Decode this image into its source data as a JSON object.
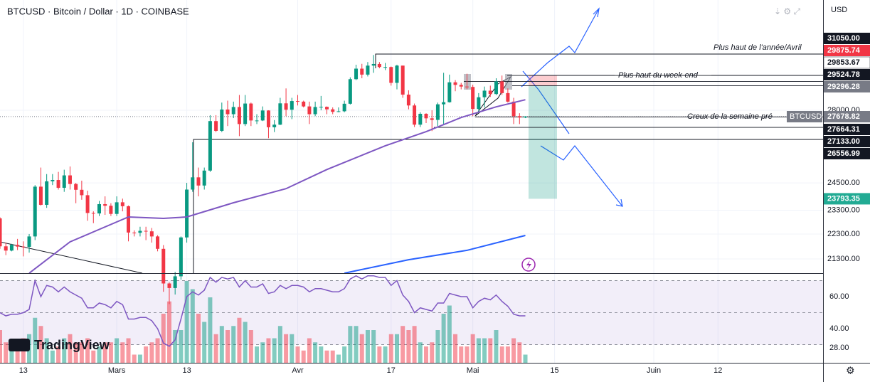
{
  "header": "BTCUSD · Bitcoin / Dollar · 1D · COINBASE",
  "currency": "USD",
  "logo": "TradingView",
  "chart_data": {
    "type": "candlestick",
    "log_scale": true,
    "grid": true,
    "up_color": "#089981",
    "down_color": "#f23645",
    "xlim": [
      0,
      141
    ],
    "xticks": [
      {
        "value": 4,
        "label": "13"
      },
      {
        "value": 20,
        "label": "Mars"
      },
      {
        "value": 32,
        "label": "13"
      },
      {
        "value": 51,
        "label": "Avr"
      },
      {
        "value": 67,
        "label": "17"
      },
      {
        "value": 81,
        "label": "Mai"
      },
      {
        "value": 95,
        "label": "15"
      },
      {
        "value": 112,
        "label": "Juin"
      },
      {
        "value": 123,
        "label": "12"
      }
    ],
    "ylim": [
      20750,
      34300
    ],
    "yticks": [
      {
        "value": 28000,
        "label": "28000.00"
      },
      {
        "value": 24500,
        "label": "24500.00"
      },
      {
        "value": 23300,
        "label": "23300.00"
      },
      {
        "value": 22300,
        "label": "22300.00"
      },
      {
        "value": 21300,
        "label": "21300.00"
      }
    ],
    "candles": [
      [
        22950,
        23000,
        21700,
        21800
      ],
      [
        21800,
        21950,
        21450,
        21630
      ],
      [
        21630,
        21900,
        21600,
        21860
      ],
      [
        21860,
        22100,
        21650,
        21790
      ],
      [
        21790,
        22000,
        21400,
        21780
      ],
      [
        21780,
        22300,
        21550,
        22200
      ],
      [
        22200,
        24400,
        22050,
        24330
      ],
      [
        24330,
        25200,
        23500,
        23530
      ],
      [
        23530,
        24900,
        23400,
        24570
      ],
      [
        24570,
        24900,
        24400,
        24630
      ],
      [
        24630,
        25000,
        24200,
        24280
      ],
      [
        24280,
        25100,
        24100,
        24840
      ],
      [
        24840,
        25250,
        24200,
        24450
      ],
      [
        24450,
        24500,
        23600,
        24190
      ],
      [
        24190,
        24600,
        23750,
        23950
      ],
      [
        23950,
        24150,
        22850,
        23180
      ],
      [
        23180,
        23250,
        22750,
        23160
      ],
      [
        23160,
        23700,
        23050,
        23560
      ],
      [
        23560,
        23900,
        23100,
        23490
      ],
      [
        23490,
        23600,
        23050,
        23140
      ],
      [
        23140,
        23900,
        23050,
        23640
      ],
      [
        23640,
        23800,
        23250,
        23470
      ],
      [
        23470,
        23500,
        22000,
        22360
      ],
      [
        22360,
        22450,
        22200,
        22350
      ],
      [
        22350,
        22600,
        22200,
        22430
      ],
      [
        22430,
        22600,
        22050,
        22410
      ],
      [
        22410,
        22550,
        21950,
        22200
      ],
      [
        22200,
        22250,
        21600,
        21700
      ],
      [
        21700,
        21850,
        20050,
        20360
      ],
      [
        20360,
        20400,
        19600,
        20190
      ],
      [
        20190,
        20800,
        19950,
        20630
      ],
      [
        20630,
        22200,
        20500,
        22160
      ],
      [
        22160,
        24500,
        21950,
        24200
      ],
      [
        24200,
        26400,
        24100,
        24750
      ],
      [
        24750,
        25200,
        23900,
        24380
      ],
      [
        24380,
        25200,
        24200,
        25060
      ],
      [
        25060,
        27750,
        25000,
        27450
      ],
      [
        27450,
        27750,
        26900,
        26960
      ],
      [
        26960,
        28400,
        26900,
        28040
      ],
      [
        28040,
        28500,
        27200,
        27800
      ],
      [
        27800,
        28450,
        27600,
        28170
      ],
      [
        28170,
        28800,
        26700,
        27300
      ],
      [
        27300,
        28800,
        27200,
        28350
      ],
      [
        28350,
        28400,
        27200,
        27480
      ],
      [
        27480,
        27800,
        27300,
        27480
      ],
      [
        27480,
        28200,
        27450,
        27990
      ],
      [
        27990,
        28000,
        26600,
        27140
      ],
      [
        27140,
        27500,
        26900,
        27270
      ],
      [
        27270,
        28650,
        27250,
        28360
      ],
      [
        28360,
        29150,
        27700,
        28030
      ],
      [
        28030,
        28650,
        27550,
        28480
      ],
      [
        28480,
        28800,
        28250,
        28450
      ],
      [
        28450,
        28500,
        28150,
        28200
      ],
      [
        28200,
        28450,
        27300,
        27800
      ],
      [
        27800,
        28450,
        27700,
        28170
      ],
      [
        28170,
        28750,
        28000,
        28180
      ],
      [
        28180,
        28200,
        27800,
        28050
      ],
      [
        28050,
        28150,
        27800,
        27920
      ],
      [
        27920,
        28150,
        27900,
        27950
      ],
      [
        27950,
        28500,
        27900,
        28340
      ],
      [
        28340,
        29750,
        28300,
        29650
      ],
      [
        29650,
        30450,
        29600,
        30230
      ],
      [
        30230,
        30500,
        29700,
        29900
      ],
      [
        29900,
        30600,
        29800,
        30400
      ],
      [
        30400,
        31000,
        30000,
        30490
      ],
      [
        30490,
        30600,
        30250,
        30320
      ],
      [
        30320,
        30550,
        30150,
        30320
      ],
      [
        30320,
        30350,
        29300,
        29450
      ],
      [
        29450,
        30450,
        29100,
        30400
      ],
      [
        30400,
        30400,
        28650,
        28820
      ],
      [
        28820,
        29050,
        28050,
        28250
      ],
      [
        28250,
        28350,
        27150,
        27270
      ],
      [
        27270,
        27900,
        27150,
        27820
      ],
      [
        27820,
        27850,
        27350,
        27590
      ],
      [
        27590,
        28000,
        26950,
        27510
      ],
      [
        27510,
        28400,
        27200,
        28310
      ],
      [
        28310,
        30000,
        27250,
        28420
      ],
      [
        28420,
        29900,
        28400,
        29480
      ],
      [
        29480,
        29600,
        29000,
        29340
      ],
      [
        29340,
        29450,
        29100,
        29250
      ],
      [
        29250,
        29950,
        29100,
        29230
      ],
      [
        29230,
        29350,
        27700,
        28070
      ],
      [
        28070,
        28900,
        27900,
        28680
      ],
      [
        28680,
        29250,
        28150,
        29030
      ],
      [
        29030,
        29300,
        28700,
        28850
      ],
      [
        28850,
        29700,
        28800,
        29530
      ],
      [
        29530,
        29850,
        28800,
        28900
      ],
      [
        28900,
        29150,
        28400,
        28450
      ],
      [
        28450,
        28650,
        27300,
        27700
      ],
      [
        27700,
        27850,
        27300,
        27630
      ],
      [
        27630,
        27700,
        27600,
        27680
      ]
    ],
    "moving_averages": [
      {
        "color": "#7e57c2",
        "x": [
          5,
          12,
          22,
          28,
          32,
          40,
          49,
          56,
          66,
          73,
          79,
          85,
          90
        ],
        "values": [
          20750,
          21980,
          23010,
          22950,
          23010,
          23620,
          24240,
          25110,
          26230,
          26920,
          27630,
          28180,
          28550
        ]
      },
      {
        "color": "#2962ff",
        "x": [
          59,
          70,
          80,
          90
        ],
        "values": [
          20750,
          21270,
          21640,
          22240
        ]
      }
    ],
    "levels": [
      {
        "value": 31050,
        "label": "31050.00",
        "color": "#131722"
      },
      {
        "value": 29875.74,
        "label": "29875.74",
        "color": "#f23645"
      },
      {
        "value": 29853.67,
        "label": "29853.67",
        "color": "#ffffff"
      },
      {
        "value": 29524.78,
        "label": "29524.78",
        "color": "#131722"
      },
      {
        "value": 29296.28,
        "label": "29296.28",
        "color": "#787b86"
      },
      {
        "value": 27678.82,
        "label": "27678.82",
        "color": "#787b86",
        "tag": "BTCUSD"
      },
      {
        "value": 27664.31,
        "label": "27664.31",
        "color": "#131722"
      },
      {
        "value": 27133,
        "label": "27133.00",
        "color": "#131722"
      },
      {
        "value": 26556.99,
        "label": "26556.99",
        "color": "#131722"
      },
      {
        "value": 23793.35,
        "label": "23793.35",
        "color": "#22ab94"
      }
    ],
    "annotations": [
      "Plus haut de l'année/Avril",
      "Plus haut du week-end",
      "Creux de la semaine pré"
    ],
    "volume": [
      40,
      25,
      15,
      15,
      30,
      35,
      55,
      45,
      30,
      15,
      20,
      30,
      35,
      25,
      25,
      30,
      15,
      20,
      25,
      25,
      30,
      25,
      30,
      10,
      10,
      20,
      25,
      30,
      60,
      75,
      40,
      40,
      100,
      90,
      60,
      50,
      80,
      35,
      45,
      40,
      45,
      55,
      50,
      40,
      20,
      25,
      30,
      30,
      45,
      35,
      35,
      20,
      15,
      30,
      25,
      20,
      15,
      15,
      10,
      20,
      45,
      45,
      35,
      40,
      40,
      20,
      20,
      35,
      35,
      45,
      40,
      45,
      25,
      20,
      25,
      40,
      60,
      70,
      35,
      20,
      20,
      35,
      30,
      30,
      30,
      40,
      20,
      20,
      30,
      25,
      10
    ],
    "rsi": {
      "color": "#7e57c2",
      "ylim": [
        18.7,
        74.2
      ],
      "bands": [
        70,
        50,
        30
      ],
      "yticks": [
        {
          "value": 60,
          "label": "60.00"
        },
        {
          "value": 40,
          "label": "40.00"
        },
        {
          "value": 28,
          "label": "28.00"
        }
      ],
      "values": [
        50,
        48,
        49,
        49,
        50,
        52,
        70,
        60,
        67,
        66,
        63,
        66,
        63,
        61,
        59,
        53,
        53,
        56,
        55,
        53,
        57,
        55,
        46,
        46,
        47,
        47,
        45,
        40,
        31,
        29,
        33,
        46,
        60,
        63,
        61,
        64,
        72,
        69,
        72,
        71,
        72,
        66,
        70,
        66,
        66,
        68,
        62,
        63,
        67,
        65,
        67,
        67,
        66,
        63,
        65,
        65,
        64,
        63,
        63,
        65,
        71,
        73,
        71,
        73,
        73,
        72,
        72,
        67,
        70,
        61,
        57,
        50,
        53,
        52,
        51,
        56,
        56,
        62,
        61,
        60,
        60,
        53,
        57,
        59,
        58,
        61,
        57,
        54,
        49,
        48,
        48
      ]
    }
  }
}
